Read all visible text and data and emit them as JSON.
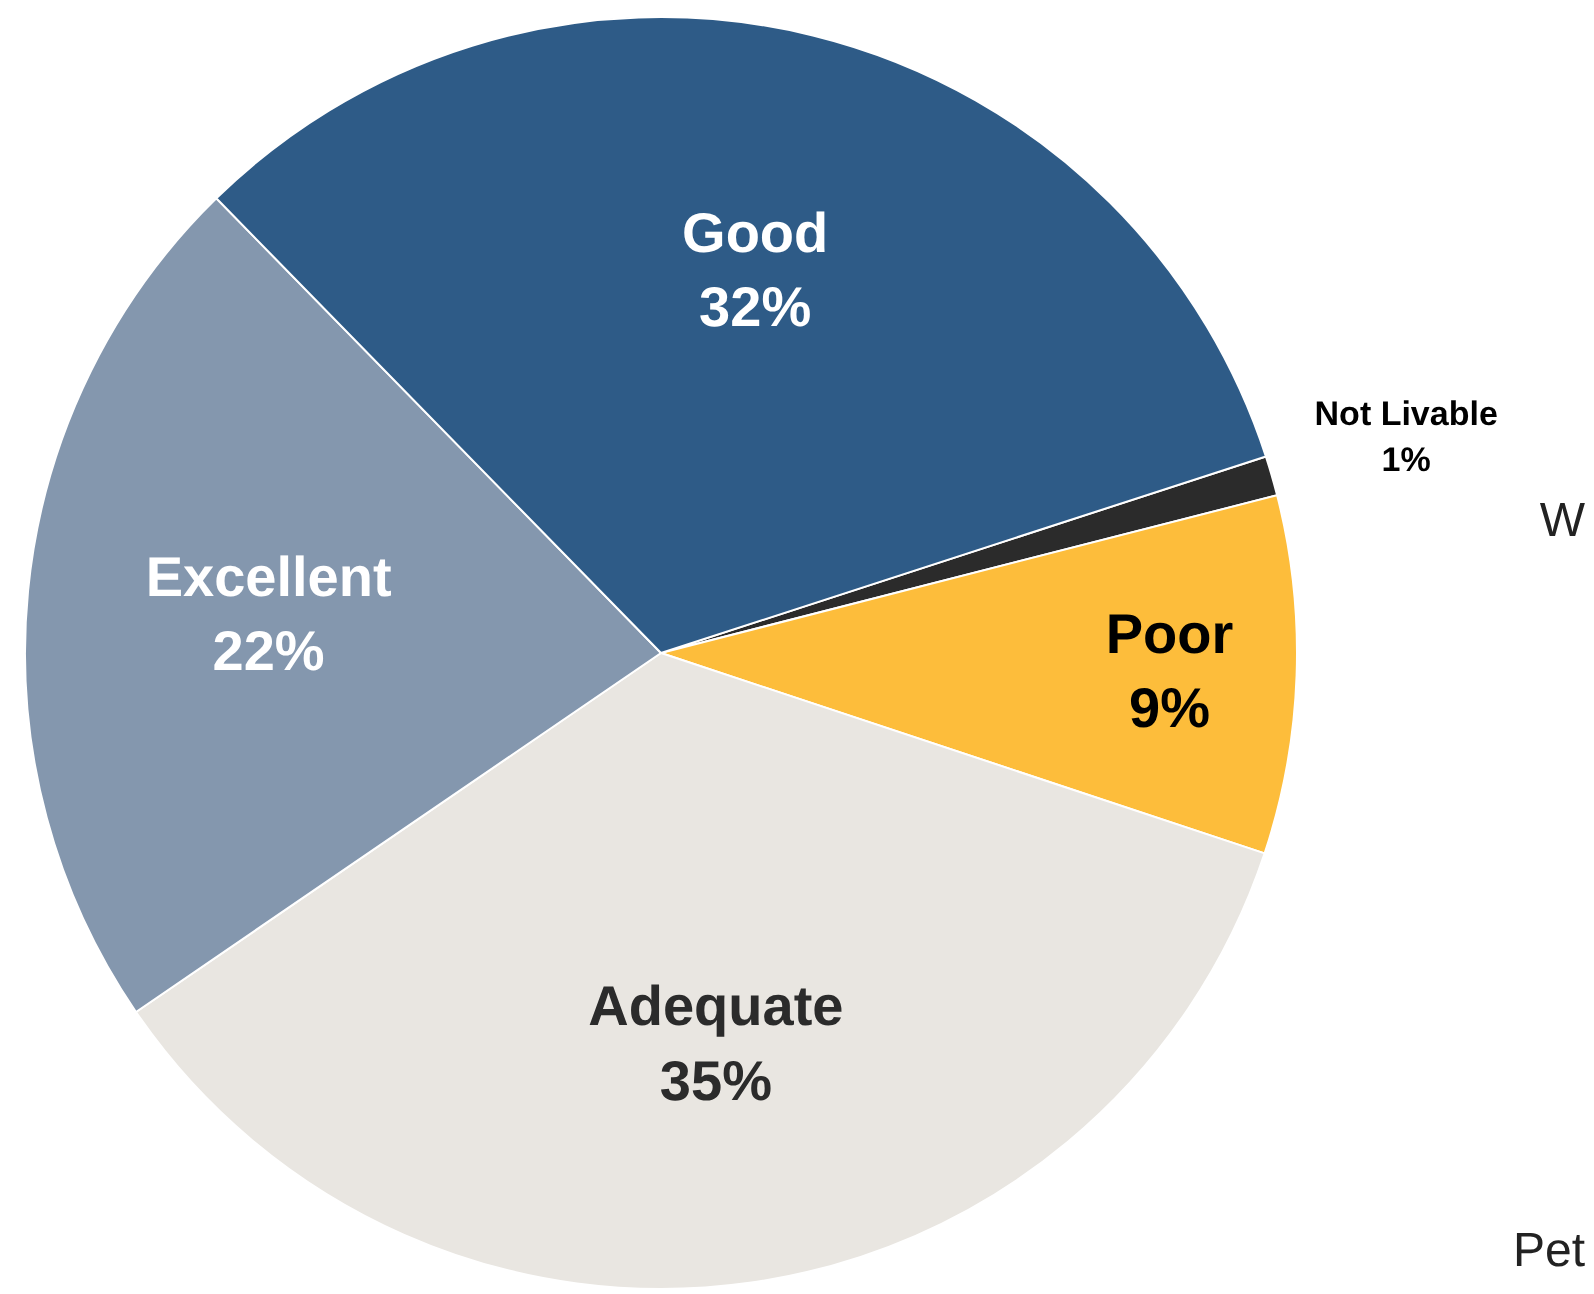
{
  "chart_data": {
    "type": "pie",
    "categories": [
      "Not Livable",
      "Poor",
      "Adequate",
      "Excellent",
      "Good"
    ],
    "values": [
      1,
      9,
      35,
      22,
      32
    ],
    "value_labels": [
      "1%",
      "9%",
      "35%",
      "22%",
      "32%"
    ],
    "colors": [
      "#2b2b2b",
      "#fdbd3b",
      "#e9e6e1",
      "#8497ae",
      "#2e5b87"
    ],
    "annotations": [
      "W",
      "Pet"
    ]
  }
}
